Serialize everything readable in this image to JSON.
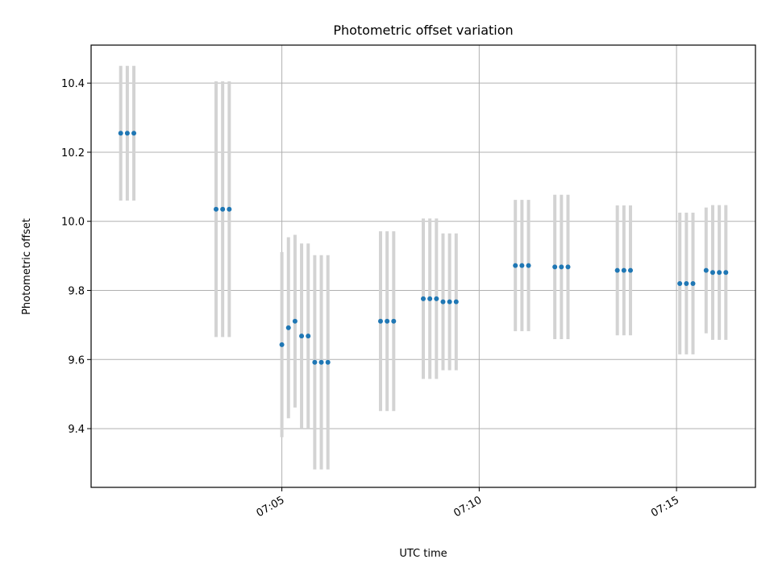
{
  "chart_data": {
    "type": "scatter",
    "title": "Photometric offset variation",
    "xlabel": "UTC time",
    "ylabel": "Photometric offset",
    "x_axis": "time",
    "xlim": [
      "07:00:10",
      "07:17:00"
    ],
    "ylim": [
      9.23,
      10.51
    ],
    "x_ticks": [
      "07:05",
      "07:10",
      "07:15"
    ],
    "y_ticks": [
      9.4,
      9.6,
      9.8,
      10.0,
      10.2,
      10.4
    ],
    "grid": true,
    "point_color": "#1f77b4",
    "errorbar_color": "#d3d3d3",
    "points": [
      {
        "t": "07:00:55",
        "y": 10.255,
        "err": 0.195
      },
      {
        "t": "07:01:05",
        "y": 10.255,
        "err": 0.195
      },
      {
        "t": "07:01:15",
        "y": 10.255,
        "err": 0.195
      },
      {
        "t": "07:03:20",
        "y": 10.035,
        "err": 0.37
      },
      {
        "t": "07:03:30",
        "y": 10.035,
        "err": 0.37
      },
      {
        "t": "07:03:40",
        "y": 10.035,
        "err": 0.37
      },
      {
        "t": "07:05:00",
        "y": 9.643,
        "err": 0.268
      },
      {
        "t": "07:05:10",
        "y": 9.692,
        "err": 0.262
      },
      {
        "t": "07:05:20",
        "y": 9.711,
        "err": 0.25
      },
      {
        "t": "07:05:30",
        "y": 9.668,
        "err": 0.268
      },
      {
        "t": "07:05:40",
        "y": 9.668,
        "err": 0.268
      },
      {
        "t": "07:05:50",
        "y": 9.592,
        "err": 0.31
      },
      {
        "t": "07:06:00",
        "y": 9.592,
        "err": 0.31
      },
      {
        "t": "07:06:10",
        "y": 9.592,
        "err": 0.31
      },
      {
        "t": "07:07:30",
        "y": 9.711,
        "err": 0.26
      },
      {
        "t": "07:07:40",
        "y": 9.711,
        "err": 0.26
      },
      {
        "t": "07:07:50",
        "y": 9.711,
        "err": 0.26
      },
      {
        "t": "07:08:35",
        "y": 9.776,
        "err": 0.232
      },
      {
        "t": "07:08:45",
        "y": 9.776,
        "err": 0.232
      },
      {
        "t": "07:08:55",
        "y": 9.776,
        "err": 0.232
      },
      {
        "t": "07:09:05",
        "y": 9.767,
        "err": 0.198
      },
      {
        "t": "07:09:15",
        "y": 9.767,
        "err": 0.198
      },
      {
        "t": "07:09:25",
        "y": 9.767,
        "err": 0.198
      },
      {
        "t": "07:10:55",
        "y": 9.872,
        "err": 0.19
      },
      {
        "t": "07:11:05",
        "y": 9.872,
        "err": 0.19
      },
      {
        "t": "07:11:15",
        "y": 9.872,
        "err": 0.19
      },
      {
        "t": "07:11:55",
        "y": 9.868,
        "err": 0.209
      },
      {
        "t": "07:12:05",
        "y": 9.868,
        "err": 0.209
      },
      {
        "t": "07:12:15",
        "y": 9.868,
        "err": 0.209
      },
      {
        "t": "07:13:30",
        "y": 9.858,
        "err": 0.188
      },
      {
        "t": "07:13:40",
        "y": 9.858,
        "err": 0.188
      },
      {
        "t": "07:13:50",
        "y": 9.858,
        "err": 0.188
      },
      {
        "t": "07:15:05",
        "y": 9.82,
        "err": 0.205
      },
      {
        "t": "07:15:15",
        "y": 9.82,
        "err": 0.205
      },
      {
        "t": "07:15:25",
        "y": 9.82,
        "err": 0.205
      },
      {
        "t": "07:15:45",
        "y": 9.858,
        "err": 0.182
      },
      {
        "t": "07:15:55",
        "y": 9.852,
        "err": 0.195
      },
      {
        "t": "07:16:05",
        "y": 9.852,
        "err": 0.195
      },
      {
        "t": "07:16:15",
        "y": 9.852,
        "err": 0.195
      }
    ]
  }
}
